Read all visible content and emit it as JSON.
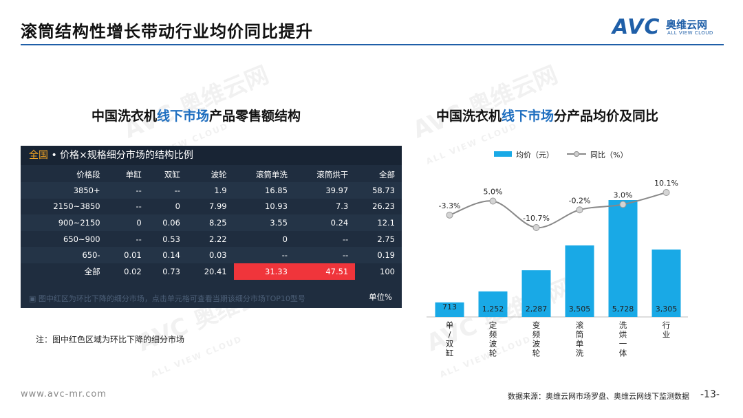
{
  "header": {
    "title": "滚筒结构性增长带动行业均价同比提升"
  },
  "logo": {
    "mark": "AVC",
    "cn": "奥维云网",
    "en": "ALL VIEW CLOUD"
  },
  "colors": {
    "accent": "#1f5fa8",
    "bar": "#19a9e6",
    "line": "#888888",
    "table_bg": "#1f2d3f",
    "table_red": "#f0353b",
    "highlight": "#f5a623"
  },
  "left": {
    "title_pre": "中国洗衣机",
    "title_hl": "线下市场",
    "title_post": "产品零售额结构",
    "panel": {
      "scope": "全国",
      "header_rest": " • 价格×规格细分市场的结构比例",
      "columns": [
        "价格段",
        "单缸",
        "双缸",
        "波轮",
        "滚筒单洗",
        "滚筒烘干",
        "全部"
      ],
      "rows": [
        [
          "3850+",
          "--",
          "--",
          "1.9",
          "16.85",
          "39.97",
          "58.73"
        ],
        [
          "2150~3850",
          "--",
          "0",
          "7.99",
          "10.93",
          "7.3",
          "26.23"
        ],
        [
          "900~2150",
          "0",
          "0.06",
          "8.25",
          "3.55",
          "0.24",
          "12.1"
        ],
        [
          "650~900",
          "--",
          "0.53",
          "2.22",
          "0",
          "--",
          "2.75"
        ],
        [
          "650-",
          "0.01",
          "0.14",
          "0.03",
          "--",
          "--",
          "0.19"
        ],
        [
          "全部",
          "0.02",
          "0.73",
          "20.41",
          "31.33",
          "47.51",
          "100"
        ]
      ],
      "red_cells": [
        [
          0,
          3
        ],
        [
          0,
          4
        ],
        [
          0,
          5
        ],
        [
          0,
          6
        ],
        [
          5,
          4
        ],
        [
          5,
          5
        ]
      ],
      "footer_hint": "图中红区为环比下降的细分市场，点击单元格可查看当期该细分市场TOP10型号",
      "unit": "单位%"
    },
    "note": "注：图中红色区域为环比下降的细分市场"
  },
  "right": {
    "title_pre": "中国洗衣机",
    "title_hl": "线下市场",
    "title_post": "分产品均价及同比"
  },
  "chart_data": {
    "type": "bar",
    "categories": [
      "单/双缸",
      "定频波轮",
      "变频波轮",
      "滚筒单洗",
      "洗烘一体",
      "行业"
    ],
    "series": [
      {
        "name": "均价（元）",
        "type": "bar",
        "values": [
          713,
          1252,
          2287,
          3505,
          5728,
          3305
        ],
        "labels": [
          "713",
          "1,252",
          "2,287",
          "3,505",
          "5,728",
          "3,305"
        ]
      },
      {
        "name": "同比（%）",
        "type": "line",
        "values": [
          -3.3,
          5.0,
          -10.7,
          -0.2,
          3.0,
          10.1
        ],
        "labels": [
          "-3.3%",
          "5.0%",
          "-10.7%",
          "-0.2%",
          "3.0%",
          "10.1%"
        ]
      }
    ],
    "legend": "top",
    "grid": false
  },
  "footer": {
    "url": "www.avc-mr.com",
    "source": "数据来源：奥维云网市场罗盘、奥维云网线下监测数据",
    "page": "-13-"
  },
  "watermark": {
    "main": "AVC 奥维云网",
    "sub": "ALL VIEW CLOUD"
  }
}
